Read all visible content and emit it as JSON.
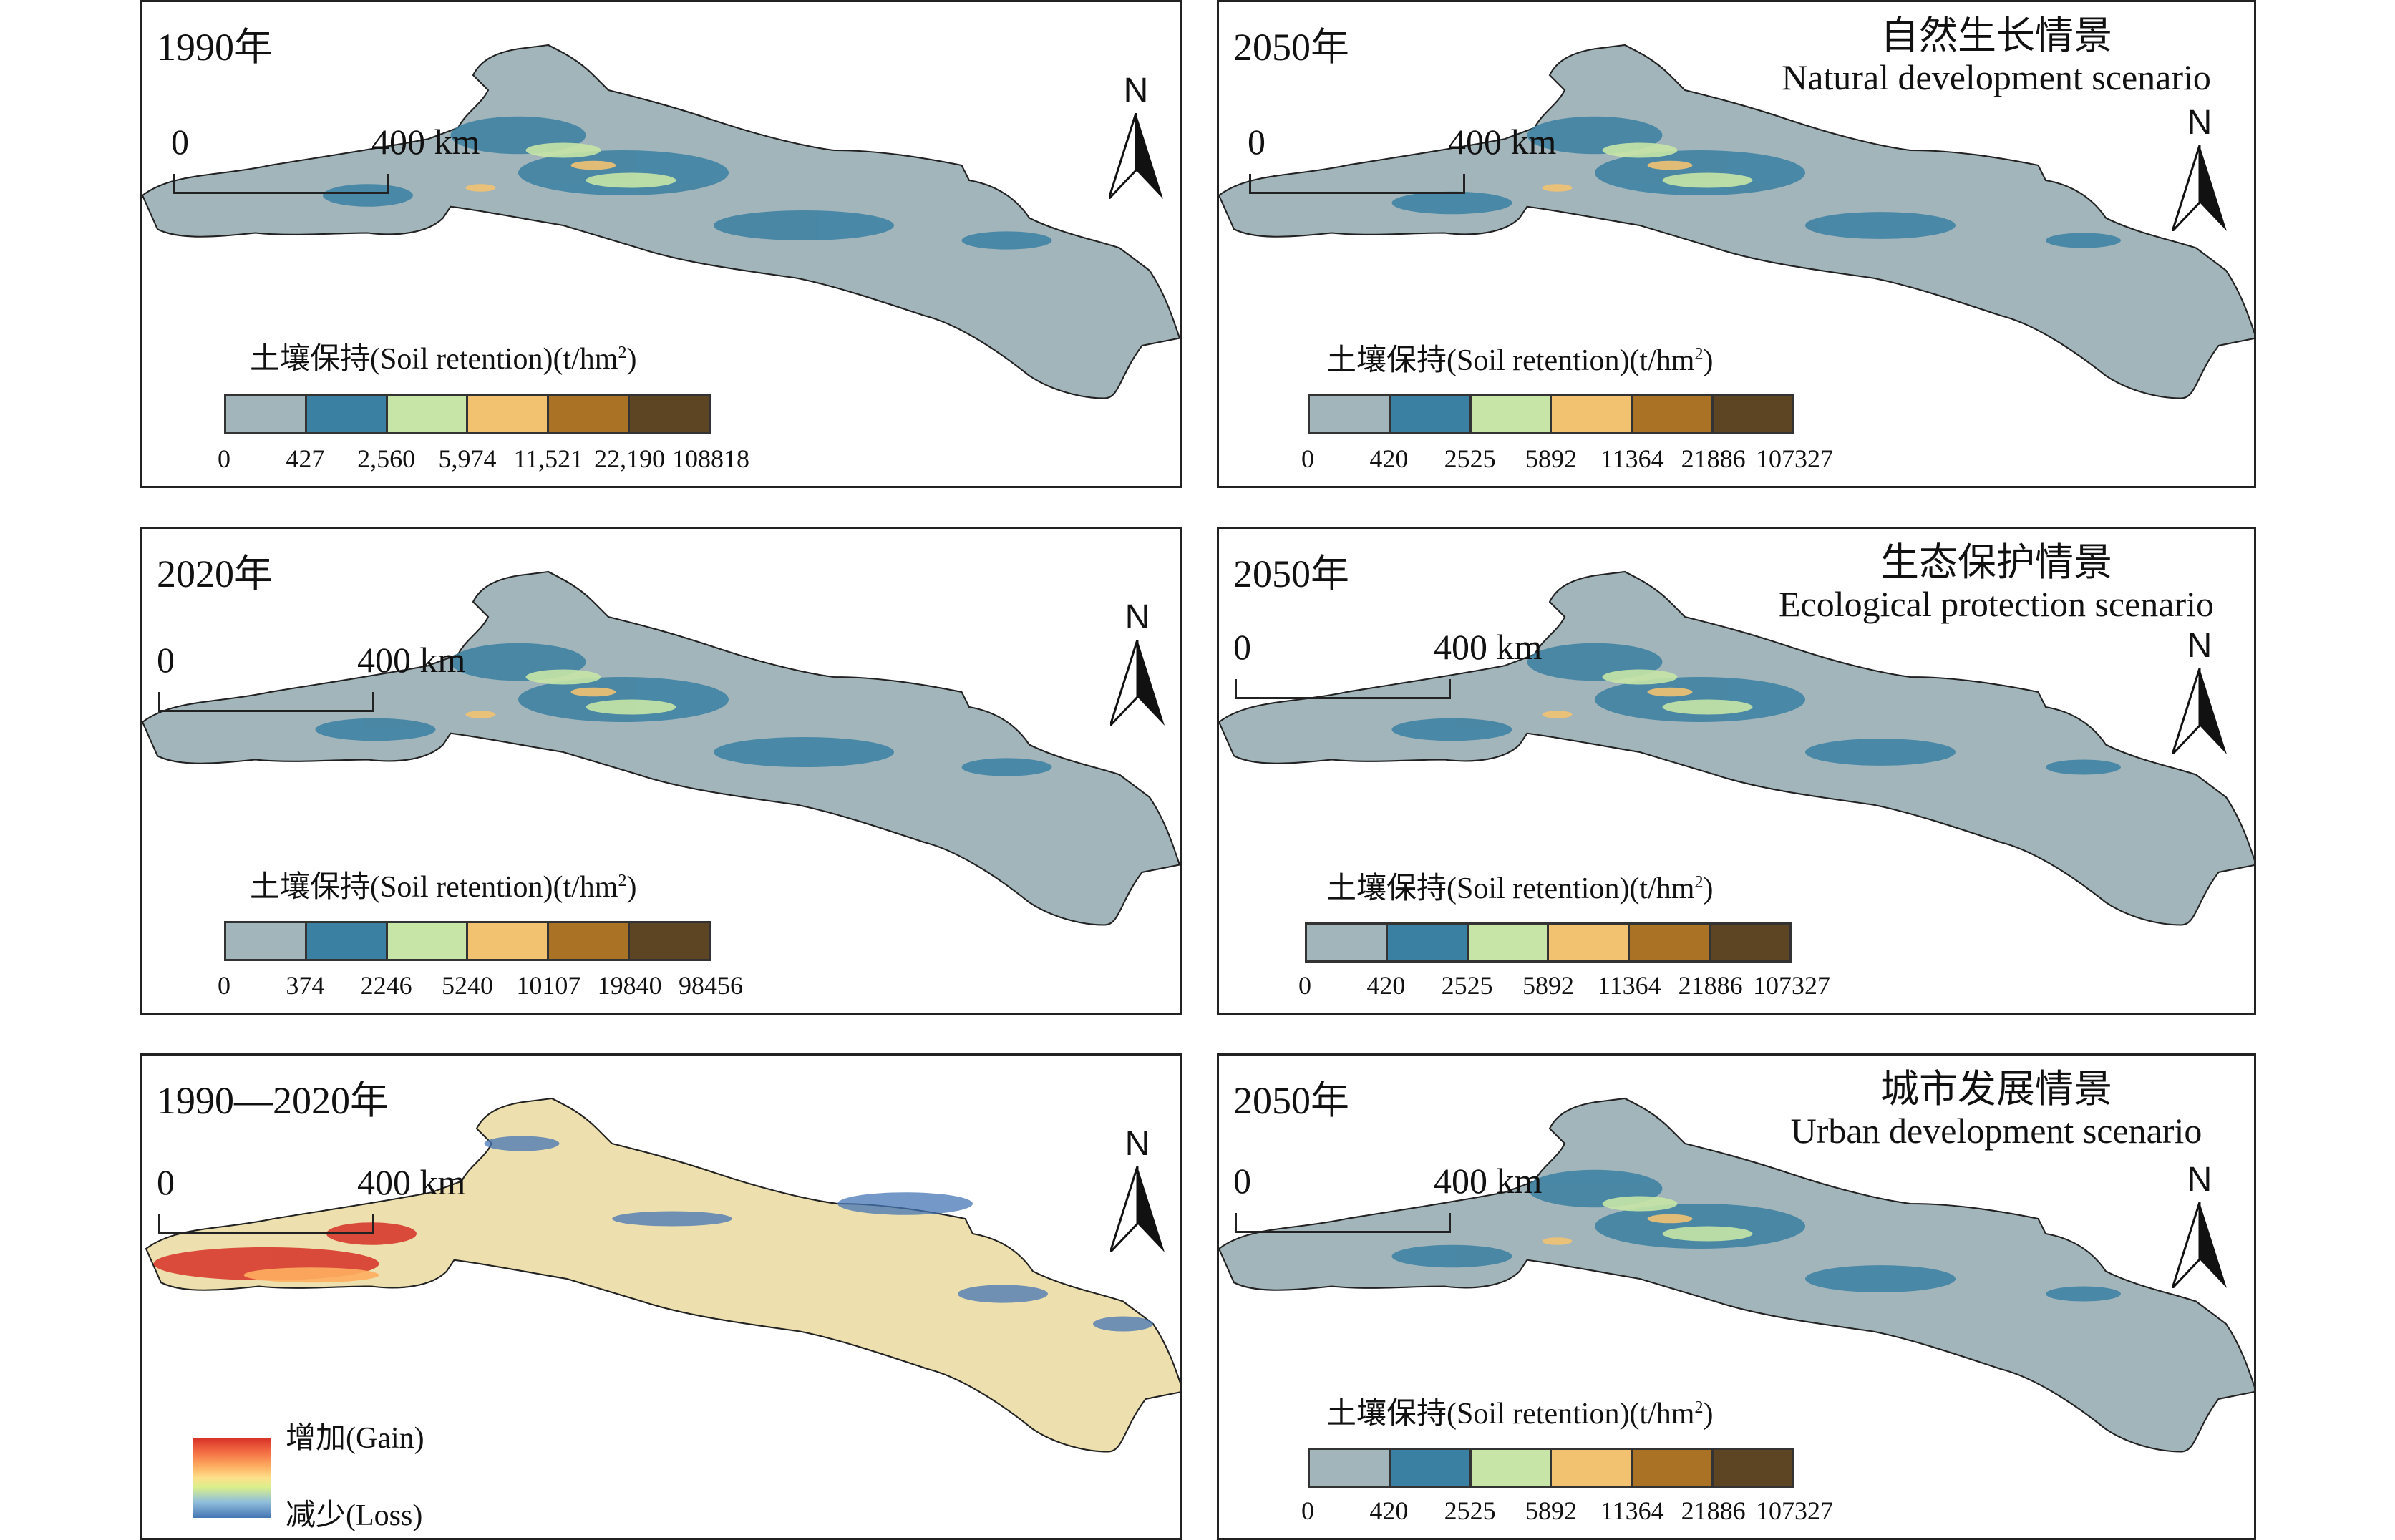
{
  "scale": {
    "zero": "0",
    "distance": "400 km"
  },
  "north_label": "N",
  "legend_title": "土壤保持(Soil retention)(t/hm",
  "legend_title_sup": "2",
  "legend_title_close": ")",
  "colors": {
    "ramp": [
      "#a2b5bb",
      "#3a80a2",
      "#c6e5a6",
      "#f2c271",
      "#a97225",
      "#5d4423"
    ],
    "land_base": "#a2b5bb",
    "change_base": "#ede0ae"
  },
  "panels": {
    "p1990": {
      "year": "1990年",
      "ticks": [
        "0",
        "427",
        "2,560",
        "5,974",
        "11,521",
        "22,190",
        "108818"
      ]
    },
    "p2020": {
      "year": "2020年",
      "ticks": [
        "0",
        "374",
        "2246",
        "5240",
        "10107",
        "19840",
        "98456"
      ]
    },
    "pchange": {
      "year": "1990—2020年",
      "gain_label": "增加(Gain)",
      "loss_label": "减少(Loss)"
    },
    "pnat": {
      "year": "2050年",
      "scenario_cn": "自然生长情景",
      "scenario_en": "Natural development scenario",
      "ticks": [
        "0",
        "420",
        "2525",
        "5892",
        "11364",
        "21886",
        "107327"
      ]
    },
    "peco": {
      "year": "2050年",
      "scenario_cn": "生态保护情景",
      "scenario_en": "Ecological protection scenario",
      "ticks": [
        "0",
        "420",
        "2525",
        "5892",
        "11364",
        "21886",
        "107327"
      ]
    },
    "purb": {
      "year": "2050年",
      "scenario_cn": "城市发展情景",
      "scenario_en": "Urban development scenario",
      "ticks": [
        "0",
        "420",
        "2525",
        "5892",
        "11364",
        "21886",
        "107327"
      ]
    }
  }
}
